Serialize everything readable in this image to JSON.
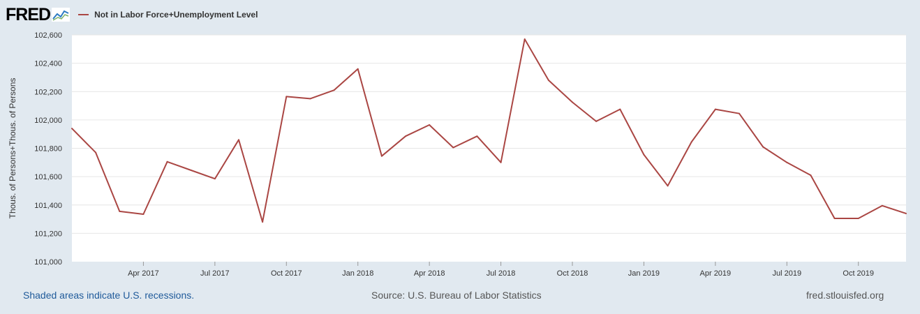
{
  "header": {
    "logo_text": "FRED",
    "logo_icon": "fred-graph-icon",
    "series_label": "Not in Labor Force+Unemployment Level"
  },
  "colors": {
    "background": "#e1e9f0",
    "plot_background": "#ffffff",
    "series_line": "#aa4643",
    "link": "#1f5a9a"
  },
  "footer": {
    "recession_note": "Shaded areas indicate U.S. recessions.",
    "source": "Source: U.S. Bureau of Labor Statistics",
    "site": "fred.stlouisfed.org"
  },
  "chart_data": {
    "type": "line",
    "title": "",
    "xlabel": "",
    "ylabel": "Thous. of Persons+Thous. of Persons",
    "ylim": [
      101000,
      102600
    ],
    "yticks": [
      101000,
      101200,
      101400,
      101600,
      101800,
      102000,
      102200,
      102400,
      102600
    ],
    "ytick_labels": [
      "101,000",
      "101,200",
      "101,400",
      "101,600",
      "101,800",
      "102,000",
      "102,200",
      "102,400",
      "102,600"
    ],
    "xlim": [
      "2017-01",
      "2019-12"
    ],
    "xticks": [
      "2017-04",
      "2017-07",
      "2017-10",
      "2018-01",
      "2018-04",
      "2018-07",
      "2018-10",
      "2019-01",
      "2019-04",
      "2019-07",
      "2019-10"
    ],
    "xtick_labels": [
      "Apr 2017",
      "Jul 2017",
      "Oct 2017",
      "Jan 2018",
      "Apr 2018",
      "Jul 2018",
      "Oct 2018",
      "Jan 2019",
      "Apr 2019",
      "Jul 2019",
      "Oct 2019"
    ],
    "grid": true,
    "legend": "top-left",
    "series": [
      {
        "name": "Not in Labor Force+Unemployment Level",
        "x": [
          "2017-01",
          "2017-02",
          "2017-03",
          "2017-04",
          "2017-05",
          "2017-06",
          "2017-07",
          "2017-08",
          "2017-09",
          "2017-10",
          "2017-11",
          "2017-12",
          "2018-01",
          "2018-02",
          "2018-03",
          "2018-04",
          "2018-05",
          "2018-06",
          "2018-07",
          "2018-08",
          "2018-09",
          "2018-10",
          "2018-11",
          "2018-12",
          "2019-01",
          "2019-02",
          "2019-03",
          "2019-04",
          "2019-05",
          "2019-06",
          "2019-07",
          "2019-08",
          "2019-09",
          "2019-10",
          "2019-11",
          "2019-12"
        ],
        "values": [
          101940,
          101770,
          101355,
          101335,
          101705,
          101645,
          101585,
          101860,
          101280,
          102165,
          102150,
          102210,
          102360,
          101745,
          101885,
          101965,
          101805,
          101885,
          101700,
          102570,
          102280,
          102125,
          101990,
          102075,
          101755,
          101535,
          101845,
          102075,
          102045,
          101810,
          101700,
          101610,
          101305,
          101305,
          101395,
          101340
        ]
      }
    ]
  }
}
